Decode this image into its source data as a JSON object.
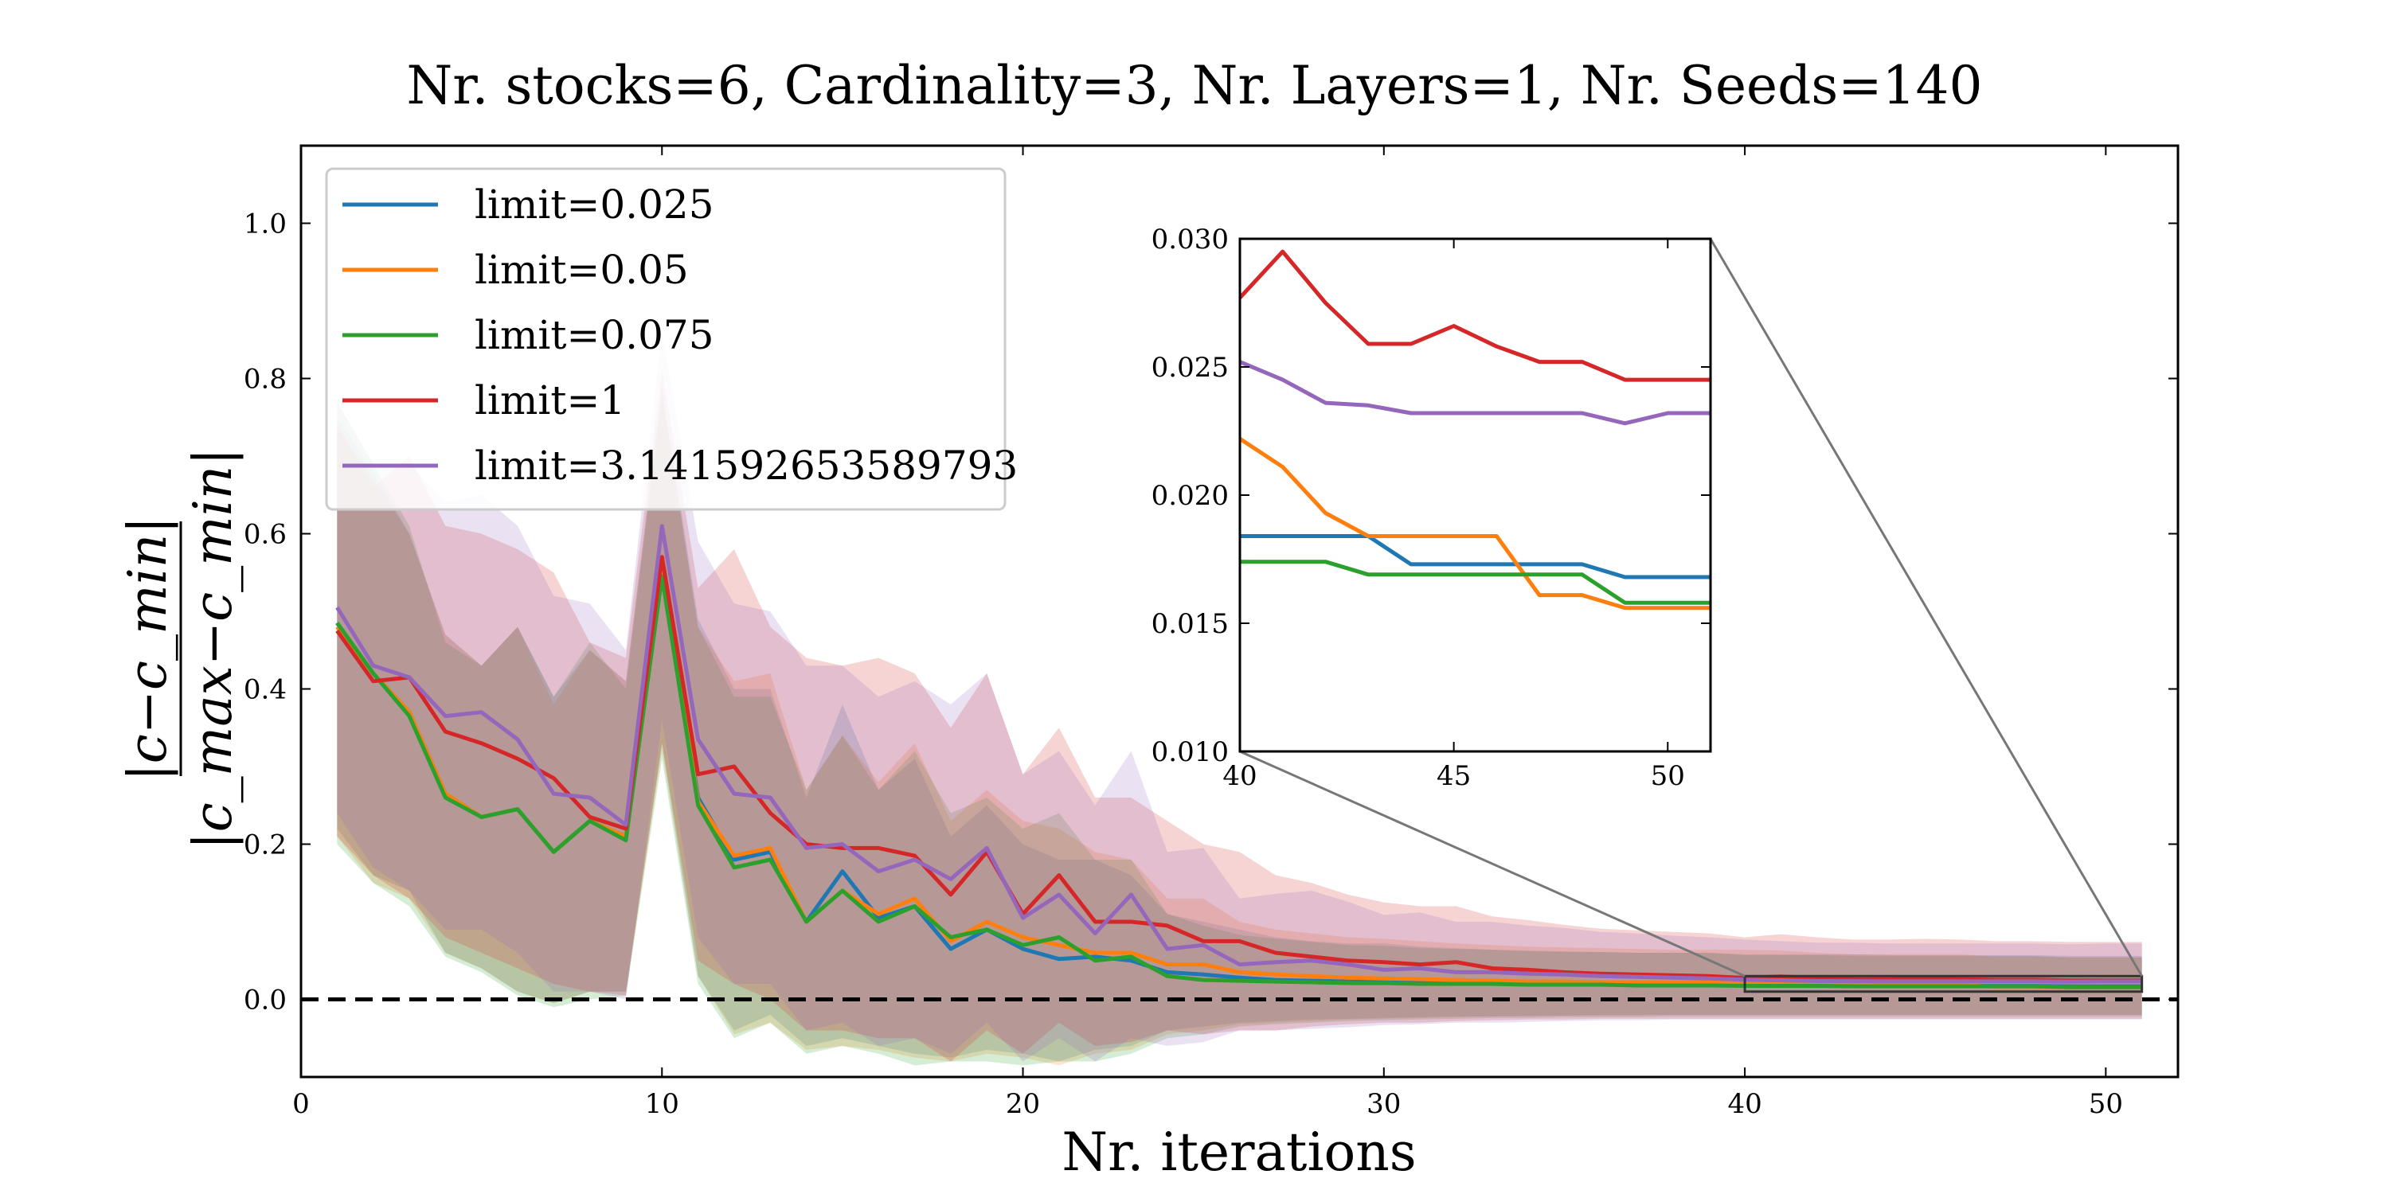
{
  "chart_data": {
    "type": "line",
    "title": "Nr. stocks=6, Cardinality=3, Nr. Layers=1, Nr. Seeds=140",
    "xlabel": "Nr. iterations",
    "ylabel": {
      "numerator": "|c−c_min|",
      "denominator": "|c_max−c_min|"
    },
    "xlim": [
      0,
      52
    ],
    "ylim": [
      -0.1,
      1.1
    ],
    "xticks": [
      "0",
      "10",
      "20",
      "30",
      "40",
      "50"
    ],
    "yticks": [
      "0.0",
      "0.2",
      "0.4",
      "0.6",
      "0.8",
      "1.0"
    ],
    "reference_line": {
      "y": 0.0,
      "style": "dashed",
      "color": "#000000"
    },
    "legend_position": "upper-left",
    "x": [
      1,
      2,
      3,
      4,
      5,
      6,
      7,
      8,
      9,
      10,
      11,
      12,
      13,
      14,
      15,
      16,
      17,
      18,
      19,
      20,
      21,
      22,
      23,
      24,
      25,
      26,
      27,
      28,
      29,
      30,
      31,
      32,
      33,
      34,
      35,
      36,
      37,
      38,
      39,
      40,
      41,
      42,
      43,
      44,
      45,
      46,
      47,
      48,
      49,
      50,
      51
    ],
    "series": [
      {
        "name": "limit=0.025",
        "color": "#1f77b4",
        "values": [
          0.485,
          0.42,
          0.37,
          0.265,
          0.235,
          0.245,
          0.19,
          0.23,
          0.21,
          0.56,
          0.26,
          0.18,
          0.19,
          0.1,
          0.165,
          0.105,
          0.12,
          0.065,
          0.09,
          0.065,
          0.052,
          0.055,
          0.05,
          0.035,
          0.032,
          0.028,
          0.025,
          0.024,
          0.023,
          0.024,
          0.022,
          0.021,
          0.021,
          0.02,
          0.02,
          0.02,
          0.019,
          0.019,
          0.019,
          0.0184,
          0.0184,
          0.0184,
          0.0184,
          0.0173,
          0.0173,
          0.0173,
          0.0173,
          0.0173,
          0.0168,
          0.0168,
          0.0168
        ],
        "band_lower": [
          0.22,
          0.16,
          0.14,
          0.06,
          0.04,
          0.01,
          -0.005,
          0.01,
          0.01,
          0.33,
          0.03,
          -0.04,
          -0.02,
          -0.06,
          -0.05,
          -0.06,
          -0.07,
          -0.075,
          -0.065,
          -0.07,
          -0.08,
          -0.065,
          -0.06,
          -0.04,
          -0.035,
          -0.03,
          -0.028,
          -0.026,
          -0.025,
          -0.024,
          -0.023,
          -0.022,
          -0.022,
          -0.021,
          -0.021,
          -0.02,
          -0.02,
          -0.02,
          -0.02,
          -0.02,
          -0.02,
          -0.02,
          -0.02,
          -0.02,
          -0.02,
          -0.02,
          -0.02,
          -0.02,
          -0.02,
          -0.02,
          -0.02
        ],
        "band_upper": [
          0.75,
          0.68,
          0.6,
          0.47,
          0.43,
          0.48,
          0.39,
          0.45,
          0.41,
          0.79,
          0.49,
          0.4,
          0.4,
          0.26,
          0.38,
          0.27,
          0.31,
          0.21,
          0.25,
          0.2,
          0.18,
          0.18,
          0.16,
          0.11,
          0.1,
          0.09,
          0.08,
          0.075,
          0.072,
          0.072,
          0.068,
          0.066,
          0.064,
          0.063,
          0.062,
          0.061,
          0.06,
          0.06,
          0.06,
          0.058,
          0.058,
          0.058,
          0.058,
          0.057,
          0.057,
          0.057,
          0.057,
          0.057,
          0.056,
          0.056,
          0.056
        ]
      },
      {
        "name": "limit=0.05",
        "color": "#ff7f0e",
        "values": [
          0.48,
          0.42,
          0.37,
          0.265,
          0.235,
          0.245,
          0.19,
          0.23,
          0.21,
          0.555,
          0.255,
          0.185,
          0.195,
          0.1,
          0.14,
          0.11,
          0.13,
          0.075,
          0.1,
          0.08,
          0.07,
          0.06,
          0.06,
          0.045,
          0.045,
          0.035,
          0.032,
          0.03,
          0.028,
          0.027,
          0.026,
          0.025,
          0.024,
          0.023,
          0.023,
          0.022,
          0.022,
          0.022,
          0.022,
          0.0222,
          0.0211,
          0.0193,
          0.0184,
          0.0184,
          0.0184,
          0.0184,
          0.0161,
          0.0161,
          0.0156,
          0.0156,
          0.0156
        ],
        "band_lower": [
          0.21,
          0.15,
          0.13,
          0.06,
          0.04,
          0.01,
          -0.005,
          0.01,
          0.01,
          0.32,
          0.03,
          -0.045,
          -0.03,
          -0.065,
          -0.06,
          -0.065,
          -0.075,
          -0.08,
          -0.07,
          -0.075,
          -0.085,
          -0.07,
          -0.065,
          -0.045,
          -0.04,
          -0.032,
          -0.03,
          -0.028,
          -0.026,
          -0.025,
          -0.024,
          -0.023,
          -0.022,
          -0.022,
          -0.021,
          -0.021,
          -0.021,
          -0.02,
          -0.02,
          -0.02,
          -0.02,
          -0.02,
          -0.02,
          -0.02,
          -0.02,
          -0.02,
          -0.02,
          -0.02,
          -0.02,
          -0.02,
          -0.02
        ],
        "band_upper": [
          0.74,
          0.67,
          0.6,
          0.47,
          0.43,
          0.48,
          0.38,
          0.45,
          0.41,
          0.78,
          0.48,
          0.41,
          0.42,
          0.27,
          0.34,
          0.28,
          0.33,
          0.23,
          0.27,
          0.23,
          0.22,
          0.19,
          0.18,
          0.13,
          0.13,
          0.1,
          0.09,
          0.085,
          0.08,
          0.078,
          0.075,
          0.072,
          0.07,
          0.068,
          0.067,
          0.066,
          0.065,
          0.064,
          0.064,
          0.064,
          0.063,
          0.06,
          0.058,
          0.058,
          0.058,
          0.058,
          0.055,
          0.055,
          0.054,
          0.054,
          0.054
        ]
      },
      {
        "name": "limit=0.075",
        "color": "#2ca02c",
        "values": [
          0.485,
          0.42,
          0.365,
          0.26,
          0.235,
          0.245,
          0.19,
          0.23,
          0.205,
          0.545,
          0.25,
          0.17,
          0.18,
          0.1,
          0.14,
          0.1,
          0.12,
          0.08,
          0.09,
          0.07,
          0.08,
          0.05,
          0.055,
          0.03,
          0.025,
          0.024,
          0.023,
          0.022,
          0.021,
          0.021,
          0.02,
          0.02,
          0.02,
          0.019,
          0.019,
          0.019,
          0.018,
          0.018,
          0.018,
          0.0174,
          0.0174,
          0.0174,
          0.0169,
          0.0169,
          0.0169,
          0.0169,
          0.0169,
          0.0169,
          0.0158,
          0.0158,
          0.0158
        ],
        "band_lower": [
          0.2,
          0.15,
          0.12,
          0.055,
          0.035,
          0.005,
          -0.01,
          0.0,
          0.005,
          0.31,
          0.02,
          -0.05,
          -0.03,
          -0.07,
          -0.06,
          -0.07,
          -0.085,
          -0.08,
          -0.08,
          -0.085,
          -0.08,
          -0.08,
          -0.07,
          -0.05,
          -0.045,
          -0.035,
          -0.032,
          -0.03,
          -0.028,
          -0.027,
          -0.026,
          -0.025,
          -0.024,
          -0.024,
          -0.023,
          -0.023,
          -0.023,
          -0.022,
          -0.022,
          -0.022,
          -0.022,
          -0.022,
          -0.022,
          -0.022,
          -0.022,
          -0.022,
          -0.022,
          -0.022,
          -0.022,
          -0.022,
          -0.022
        ],
        "band_upper": [
          0.77,
          0.69,
          0.61,
          0.46,
          0.43,
          0.48,
          0.39,
          0.46,
          0.4,
          0.78,
          0.48,
          0.39,
          0.39,
          0.27,
          0.34,
          0.27,
          0.32,
          0.24,
          0.26,
          0.22,
          0.24,
          0.18,
          0.18,
          0.11,
          0.095,
          0.083,
          0.078,
          0.074,
          0.07,
          0.069,
          0.066,
          0.065,
          0.064,
          0.062,
          0.061,
          0.061,
          0.06,
          0.06,
          0.06,
          0.057,
          0.057,
          0.057,
          0.056,
          0.056,
          0.056,
          0.056,
          0.056,
          0.056,
          0.054,
          0.054,
          0.054
        ]
      },
      {
        "name": "limit=1",
        "color": "#d62728",
        "values": [
          0.475,
          0.41,
          0.415,
          0.345,
          0.33,
          0.31,
          0.285,
          0.235,
          0.22,
          0.57,
          0.29,
          0.3,
          0.24,
          0.2,
          0.195,
          0.195,
          0.185,
          0.135,
          0.19,
          0.11,
          0.16,
          0.1,
          0.1,
          0.095,
          0.075,
          0.075,
          0.06,
          0.055,
          0.05,
          0.048,
          0.045,
          0.048,
          0.04,
          0.038,
          0.035,
          0.033,
          0.032,
          0.031,
          0.03,
          0.0277,
          0.0295,
          0.0275,
          0.0259,
          0.0259,
          0.0266,
          0.0258,
          0.0252,
          0.0252,
          0.0245,
          0.0245,
          0.0245
        ],
        "band_lower": [
          0.21,
          0.16,
          0.13,
          0.08,
          0.06,
          0.04,
          0.02,
          0.01,
          0.005,
          0.33,
          0.05,
          0.02,
          0.0,
          -0.04,
          -0.04,
          -0.05,
          -0.05,
          -0.08,
          -0.04,
          -0.07,
          -0.03,
          -0.06,
          -0.055,
          -0.04,
          -0.045,
          -0.04,
          -0.04,
          -0.035,
          -0.032,
          -0.03,
          -0.03,
          -0.028,
          -0.027,
          -0.026,
          -0.026,
          -0.025,
          -0.025,
          -0.025,
          -0.025,
          -0.025,
          -0.025,
          -0.025,
          -0.025,
          -0.025,
          -0.025,
          -0.025,
          -0.025,
          -0.025,
          -0.025,
          -0.025,
          -0.025
        ],
        "band_upper": [
          0.74,
          0.66,
          0.7,
          0.61,
          0.6,
          0.58,
          0.55,
          0.46,
          0.44,
          0.81,
          0.53,
          0.58,
          0.48,
          0.44,
          0.43,
          0.44,
          0.42,
          0.35,
          0.42,
          0.29,
          0.35,
          0.26,
          0.26,
          0.23,
          0.2,
          0.19,
          0.16,
          0.15,
          0.135,
          0.125,
          0.12,
          0.12,
          0.107,
          0.102,
          0.096,
          0.091,
          0.089,
          0.087,
          0.085,
          0.08,
          0.084,
          0.08,
          0.077,
          0.077,
          0.078,
          0.077,
          0.075,
          0.075,
          0.074,
          0.074,
          0.074
        ]
      },
      {
        "name": "limit=3.141592653589793",
        "color": "#9467bd",
        "values": [
          0.505,
          0.43,
          0.415,
          0.365,
          0.37,
          0.335,
          0.265,
          0.26,
          0.225,
          0.61,
          0.335,
          0.265,
          0.26,
          0.195,
          0.2,
          0.165,
          0.18,
          0.155,
          0.195,
          0.105,
          0.135,
          0.085,
          0.135,
          0.065,
          0.07,
          0.045,
          0.048,
          0.05,
          0.045,
          0.038,
          0.04,
          0.035,
          0.035,
          0.033,
          0.032,
          0.03,
          0.029,
          0.028,
          0.027,
          0.0252,
          0.0245,
          0.0236,
          0.0235,
          0.0232,
          0.0232,
          0.0232,
          0.0232,
          0.0232,
          0.0228,
          0.0232,
          0.0232
        ],
        "band_lower": [
          0.24,
          0.17,
          0.14,
          0.09,
          0.09,
          0.06,
          0.01,
          0.01,
          0.0,
          0.36,
          0.08,
          0.02,
          0.02,
          -0.04,
          -0.03,
          -0.06,
          -0.05,
          -0.07,
          -0.03,
          -0.08,
          -0.05,
          -0.08,
          -0.05,
          -0.06,
          -0.055,
          -0.04,
          -0.04,
          -0.038,
          -0.036,
          -0.033,
          -0.032,
          -0.03,
          -0.03,
          -0.029,
          -0.028,
          -0.027,
          -0.027,
          -0.026,
          -0.026,
          -0.026,
          -0.026,
          -0.026,
          -0.026,
          -0.026,
          -0.026,
          -0.026,
          -0.026,
          -0.026,
          -0.026,
          -0.026,
          -0.026
        ],
        "band_upper": [
          0.77,
          0.69,
          0.69,
          0.64,
          0.65,
          0.61,
          0.52,
          0.51,
          0.45,
          0.86,
          0.59,
          0.51,
          0.5,
          0.43,
          0.43,
          0.39,
          0.41,
          0.38,
          0.42,
          0.29,
          0.32,
          0.25,
          0.32,
          0.19,
          0.195,
          0.13,
          0.136,
          0.14,
          0.126,
          0.109,
          0.112,
          0.1,
          0.1,
          0.095,
          0.092,
          0.087,
          0.085,
          0.082,
          0.08,
          0.077,
          0.075,
          0.073,
          0.073,
          0.072,
          0.072,
          0.072,
          0.072,
          0.072,
          0.071,
          0.072,
          0.072
        ]
      }
    ],
    "inset": {
      "xlim": [
        40,
        51
      ],
      "ylim": [
        0.01,
        0.03
      ],
      "xticks": [
        "40",
        "45",
        "50"
      ],
      "yticks": [
        "0.010",
        "0.015",
        "0.020",
        "0.025",
        "0.030"
      ]
    }
  }
}
